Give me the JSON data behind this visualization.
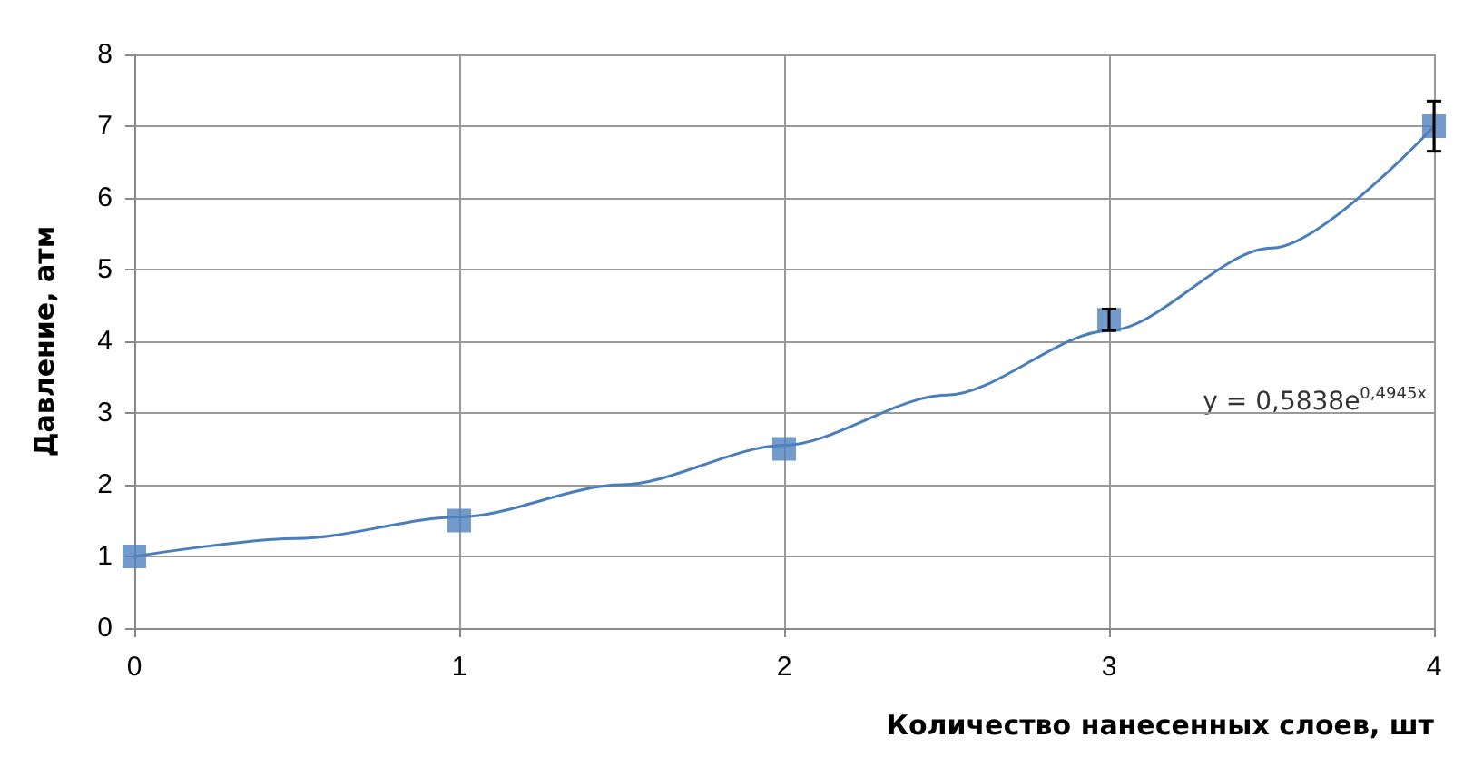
{
  "chart_data": {
    "type": "scatter",
    "xlabel": "Количество нанесенных слоев, шт",
    "ylabel": "Давление, атм",
    "xlim": [
      0,
      4
    ],
    "xticks": [
      0,
      1,
      2,
      3,
      4
    ],
    "ylim": [
      0,
      8
    ],
    "yticks": [
      0,
      1,
      2,
      3,
      4,
      5,
      6,
      7,
      8
    ],
    "grid": true,
    "marker": "square",
    "series": [
      {
        "color": "#4f81bd",
        "x": [
          0,
          1,
          2,
          3,
          4
        ],
        "values": [
          1,
          1.5,
          2.5,
          4.3,
          7
        ],
        "errors": [
          null,
          null,
          null,
          0.15,
          0.35
        ]
      },
      {
        "type": "line",
        "color": "#4a7ebb",
        "marker": "none",
        "x": [
          0,
          0.5,
          1,
          1.5,
          2,
          2.5,
          3,
          3.5,
          4
        ],
        "values": [
          1,
          1.25,
          1.55,
          2,
          2.55,
          3.25,
          4.15,
          5.3,
          7
        ]
      }
    ],
    "annotations": [
      "y = 0,5838e$^{0,4945x}$"
    ]
  }
}
